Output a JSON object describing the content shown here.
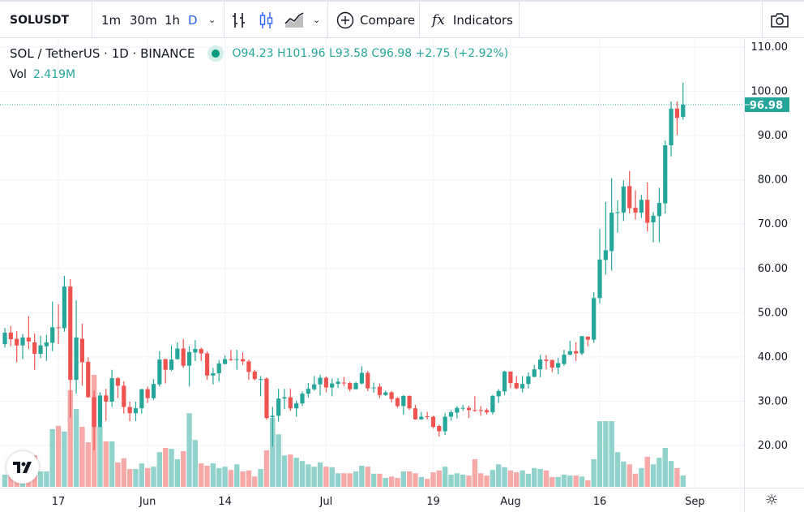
{
  "toolbar": {
    "symbol": "SOLUSDT",
    "intervals": [
      "1m",
      "30m",
      "1h",
      "D"
    ],
    "active_interval": "D",
    "compare_label": "Compare",
    "indicators_label": "Indicators",
    "fx_glyph": "fx"
  },
  "legend": {
    "title": "SOL / TetherUS · 1D · BINANCE",
    "open": "O94.23",
    "high": "H101.96",
    "low": "L93.58",
    "close": "C96.98",
    "change": "+2.75 (+2.92%)",
    "vol_label": "Vol",
    "vol_value": "2.419M"
  },
  "colors": {
    "up": "#26a69a",
    "down": "#ef5350",
    "up_vol": "#92d2cc",
    "down_vol": "#f7a9a7",
    "accent": "#2962ff"
  },
  "logo_text": "TV",
  "chart_data": {
    "type": "candlestick",
    "price_ticks": [
      "110.00",
      "100.00",
      "90.00",
      "80.00",
      "70.00",
      "60.00",
      "50.00",
      "40.00",
      "30.00",
      "20.00"
    ],
    "price_range": [
      20,
      110
    ],
    "last_price": 96.98,
    "last_price_label": "96.98",
    "time_labels": [
      {
        "label": "17",
        "index": 9
      },
      {
        "label": "Jun",
        "index": 24
      },
      {
        "label": "14",
        "index": 37
      },
      {
        "label": "Jul",
        "index": 54
      },
      {
        "label": "19",
        "index": 72
      },
      {
        "label": "Aug",
        "index": 85
      },
      {
        "label": "16",
        "index": 100
      },
      {
        "label": "Sep",
        "index": 116
      }
    ],
    "candles_format": [
      "open",
      "high",
      "low",
      "close",
      "volume_M"
    ],
    "candles": [
      [
        42.9,
        46.6,
        42.1,
        45.5,
        2.6
      ],
      [
        45.5,
        47.0,
        42.4,
        44.0,
        2.6
      ],
      [
        44.1,
        45.8,
        38.8,
        42.6,
        2.1
      ],
      [
        42.6,
        45.2,
        39.5,
        44.4,
        3.1
      ],
      [
        44.4,
        49.2,
        41.8,
        43.5,
        5.2
      ],
      [
        43.3,
        45.3,
        37.1,
        40.7,
        6.7
      ],
      [
        40.7,
        44.8,
        39.7,
        42.6,
        3.3
      ],
      [
        42.4,
        45.0,
        39.1,
        43.3,
        3.3
      ],
      [
        43.2,
        52.5,
        41.3,
        46.7,
        12.3
      ],
      [
        46.7,
        51.9,
        42.9,
        46.6,
        13.0
      ],
      [
        46.5,
        58.3,
        45.7,
        55.9,
        11.8
      ],
      [
        55.9,
        57.6,
        26.2,
        34.8,
        20.6
      ],
      [
        34.8,
        52.8,
        31.7,
        44.4,
        16.6
      ],
      [
        44.1,
        47.5,
        33.5,
        38.8,
        12.8
      ],
      [
        38.9,
        39.9,
        30.8,
        30.9,
        9.5
      ],
      [
        30.9,
        32.3,
        18.9,
        24.2,
        23.9
      ],
      [
        24.2,
        32.0,
        24.1,
        31.3,
        12.8
      ],
      [
        31.3,
        32.8,
        25.6,
        29.9,
        9.7
      ],
      [
        29.9,
        37.1,
        28.7,
        35.2,
        9.7
      ],
      [
        35.2,
        35.4,
        30.7,
        33.5,
        5.2
      ],
      [
        33.5,
        34.5,
        27.2,
        28.7,
        6.1
      ],
      [
        28.7,
        29.9,
        25.5,
        27.3,
        3.8
      ],
      [
        27.3,
        29.9,
        25.5,
        28.4,
        3.8
      ],
      [
        28.4,
        32.8,
        27.2,
        32.7,
        5.0
      ],
      [
        32.7,
        33.3,
        29.6,
        30.7,
        4.0
      ],
      [
        30.7,
        35.0,
        30.3,
        33.9,
        4.3
      ],
      [
        33.8,
        41.3,
        33.3,
        39.4,
        7.4
      ],
      [
        39.5,
        39.6,
        34.0,
        37.1,
        8.3
      ],
      [
        37.1,
        42.6,
        36.8,
        39.4,
        8.1
      ],
      [
        39.5,
        43.3,
        39.4,
        41.9,
        5.9
      ],
      [
        41.9,
        44.0,
        37.5,
        38.0,
        7.6
      ],
      [
        38.0,
        42.4,
        33.3,
        41.1,
        15.7
      ],
      [
        41.0,
        43.8,
        39.1,
        41.8,
        10.0
      ],
      [
        41.8,
        42.1,
        39.1,
        40.8,
        5.0
      ],
      [
        40.8,
        41.2,
        34.8,
        35.8,
        4.5
      ],
      [
        35.8,
        37.5,
        33.8,
        36.3,
        5.0
      ],
      [
        36.3,
        39.3,
        34.5,
        38.5,
        4.0
      ],
      [
        38.4,
        40.3,
        38.3,
        39.5,
        4.3
      ],
      [
        39.5,
        41.6,
        39.1,
        39.3,
        3.6
      ],
      [
        39.4,
        41.6,
        37.1,
        39.5,
        4.8
      ],
      [
        39.5,
        41.1,
        38.2,
        39.0,
        3.3
      ],
      [
        39.0,
        39.4,
        34.8,
        36.6,
        3.5
      ],
      [
        36.7,
        37.1,
        34.7,
        35.0,
        2.2
      ],
      [
        34.9,
        35.7,
        31.1,
        35.0,
        3.8
      ],
      [
        35.1,
        35.4,
        25.8,
        26.2,
        7.8
      ],
      [
        26.4,
        28.7,
        19.8,
        26.7,
        14.7
      ],
      [
        26.7,
        32.8,
        25.4,
        30.6,
        11.2
      ],
      [
        30.6,
        32.8,
        28.2,
        30.9,
        6.7
      ],
      [
        30.9,
        32.8,
        27.8,
        28.4,
        6.9
      ],
      [
        28.4,
        30.1,
        26.5,
        29.5,
        6.2
      ],
      [
        29.5,
        32.2,
        28.9,
        31.7,
        5.5
      ],
      [
        31.7,
        34.1,
        30.8,
        32.8,
        4.8
      ],
      [
        32.7,
        35.7,
        32.4,
        33.8,
        4.3
      ],
      [
        33.8,
        36.0,
        31.3,
        35.3,
        5.2
      ],
      [
        35.3,
        35.6,
        32.0,
        33.1,
        4.3
      ],
      [
        33.1,
        35.1,
        31.1,
        34.0,
        4.2
      ],
      [
        33.9,
        35.2,
        33.0,
        34.4,
        2.9
      ],
      [
        34.2,
        35.5,
        33.4,
        34.1,
        2.9
      ],
      [
        34.1,
        34.4,
        32.2,
        32.7,
        2.9
      ],
      [
        32.7,
        34.4,
        32.7,
        34.1,
        3.3
      ],
      [
        34.0,
        37.9,
        33.8,
        36.4,
        4.5
      ],
      [
        36.4,
        36.9,
        32.3,
        32.9,
        4.3
      ],
      [
        33.0,
        34.2,
        31.9,
        33.1,
        2.8
      ],
      [
        33.3,
        34.0,
        30.7,
        31.4,
        2.8
      ],
      [
        31.4,
        32.4,
        31.2,
        32.0,
        1.9
      ],
      [
        32.0,
        32.3,
        29.7,
        30.5,
        2.2
      ],
      [
        30.7,
        30.9,
        28.5,
        28.9,
        1.9
      ],
      [
        28.9,
        31.4,
        27.0,
        31.2,
        3.3
      ],
      [
        31.2,
        31.3,
        28.0,
        28.4,
        3.3
      ],
      [
        28.4,
        29.2,
        25.8,
        25.9,
        2.9
      ],
      [
        25.9,
        27.6,
        25.8,
        26.5,
        2.1
      ],
      [
        26.6,
        27.6,
        25.9,
        26.5,
        1.7
      ],
      [
        26.5,
        26.7,
        23.8,
        24.2,
        3.1
      ],
      [
        24.4,
        24.7,
        22.0,
        23.2,
        3.5
      ],
      [
        23.2,
        27.3,
        22.4,
        26.5,
        4.3
      ],
      [
        26.5,
        28.0,
        25.6,
        27.5,
        2.6
      ],
      [
        27.4,
        28.9,
        26.1,
        28.5,
        2.9
      ],
      [
        28.4,
        29.2,
        27.8,
        28.5,
        2.6
      ],
      [
        28.5,
        29.0,
        26.2,
        28.0,
        2.4
      ],
      [
        28.0,
        31.1,
        27.6,
        27.9,
        5.9
      ],
      [
        28.0,
        28.9,
        26.7,
        27.8,
        2.9
      ],
      [
        28.0,
        28.4,
        27.0,
        27.5,
        2.4
      ],
      [
        27.5,
        31.4,
        27.0,
        31.2,
        3.6
      ],
      [
        31.1,
        32.7,
        29.6,
        32.3,
        4.8
      ],
      [
        32.2,
        36.9,
        31.4,
        36.7,
        4.2
      ],
      [
        36.7,
        36.7,
        32.9,
        34.1,
        3.5
      ],
      [
        34.1,
        35.7,
        32.7,
        32.9,
        3.1
      ],
      [
        32.9,
        35.7,
        32.0,
        33.9,
        3.5
      ],
      [
        33.9,
        36.5,
        32.9,
        35.6,
        2.8
      ],
      [
        35.5,
        38.2,
        35.4,
        37.2,
        4.0
      ],
      [
        37.2,
        40.4,
        35.4,
        39.4,
        3.8
      ],
      [
        39.4,
        40.4,
        37.2,
        39.1,
        3.5
      ],
      [
        39.3,
        39.4,
        36.6,
        37.6,
        2.1
      ],
      [
        37.6,
        39.8,
        36.1,
        38.6,
        2.1
      ],
      [
        38.4,
        41.6,
        38.0,
        40.5,
        2.6
      ],
      [
        40.5,
        43.6,
        40.4,
        41.3,
        2.4
      ],
      [
        41.3,
        43.3,
        39.1,
        40.8,
        2.4
      ],
      [
        40.8,
        44.7,
        40.4,
        44.7,
        2.2
      ],
      [
        44.6,
        44.6,
        42.4,
        43.9,
        1.4
      ],
      [
        43.9,
        54.6,
        43.2,
        53.3,
        5.9
      ],
      [
        53.3,
        68.9,
        52.1,
        62.0,
        14.0
      ],
      [
        61.9,
        75.0,
        58.6,
        64.1,
        14.0
      ],
      [
        63.9,
        80.4,
        59.5,
        72.6,
        14.0
      ],
      [
        72.5,
        75.4,
        68.1,
        72.7,
        7.4
      ],
      [
        72.6,
        79.9,
        70.7,
        78.5,
        5.4
      ],
      [
        78.6,
        82.0,
        72.4,
        73.6,
        4.8
      ],
      [
        73.7,
        77.6,
        71.0,
        72.6,
        2.8
      ],
      [
        72.6,
        76.6,
        71.4,
        75.5,
        4.0
      ],
      [
        75.5,
        79.4,
        68.3,
        70.3,
        6.4
      ],
      [
        70.4,
        72.7,
        65.9,
        71.9,
        4.8
      ],
      [
        71.8,
        78.2,
        65.9,
        74.8,
        6.2
      ],
      [
        74.7,
        88.9,
        72.4,
        87.8,
        8.3
      ],
      [
        87.8,
        97.7,
        85.3,
        96.1,
        5.5
      ],
      [
        96.1,
        97.7,
        90.1,
        94.0,
        4.0
      ],
      [
        94.23,
        101.96,
        93.58,
        96.98,
        2.419
      ]
    ]
  }
}
